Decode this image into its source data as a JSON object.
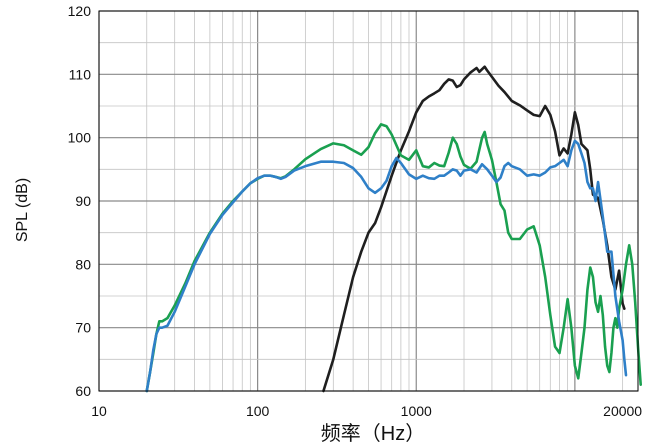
{
  "chart_data": {
    "type": "line",
    "title": "",
    "xlabel": "频率（Hz）",
    "ylabel": "SPL (dB)",
    "xscale": "log",
    "xlim": [
      10,
      25000
    ],
    "ylim": [
      60,
      120
    ],
    "x_tick_labels": [
      {
        "value": 10,
        "label": "10"
      },
      {
        "value": 100,
        "label": "100"
      },
      {
        "value": 1000,
        "label": "1000"
      },
      {
        "value": 20000,
        "label": "20000"
      }
    ],
    "y_ticks": [
      60,
      70,
      80,
      90,
      100,
      110,
      120
    ],
    "grid": true,
    "legend": "none",
    "series": [
      {
        "color": "#1f1f1f",
        "points": [
          [
            260,
            60
          ],
          [
            300,
            65
          ],
          [
            350,
            72
          ],
          [
            400,
            78
          ],
          [
            450,
            82
          ],
          [
            500,
            85
          ],
          [
            550,
            86.5
          ],
          [
            600,
            89
          ],
          [
            700,
            94
          ],
          [
            800,
            98
          ],
          [
            900,
            101
          ],
          [
            1000,
            104
          ],
          [
            1100,
            105.8
          ],
          [
            1200,
            106.5
          ],
          [
            1300,
            107
          ],
          [
            1400,
            107.5
          ],
          [
            1500,
            108.5
          ],
          [
            1600,
            109.2
          ],
          [
            1700,
            109
          ],
          [
            1800,
            108
          ],
          [
            1900,
            108.3
          ],
          [
            2000,
            109.2
          ],
          [
            2200,
            110.3
          ],
          [
            2400,
            111
          ],
          [
            2500,
            110.4
          ],
          [
            2700,
            111.2
          ],
          [
            2800,
            110.6
          ],
          [
            3000,
            109.6
          ],
          [
            3300,
            108.2
          ],
          [
            3600,
            107.2
          ],
          [
            4000,
            105.8
          ],
          [
            4500,
            105.1
          ],
          [
            5000,
            104.3
          ],
          [
            5500,
            103.6
          ],
          [
            6000,
            103.4
          ],
          [
            6500,
            105
          ],
          [
            7000,
            103.6
          ],
          [
            7500,
            101
          ],
          [
            8000,
            97.2
          ],
          [
            8500,
            98.3
          ],
          [
            9000,
            97.5
          ],
          [
            9500,
            100.5
          ],
          [
            10000,
            104
          ],
          [
            10500,
            102
          ],
          [
            11000,
            99
          ],
          [
            12000,
            98
          ],
          [
            12500,
            95
          ],
          [
            13000,
            91
          ],
          [
            14000,
            90.5
          ],
          [
            15000,
            87
          ],
          [
            16000,
            83
          ],
          [
            17000,
            78
          ],
          [
            18000,
            76
          ],
          [
            19000,
            79
          ],
          [
            20000,
            73.8
          ],
          [
            20500,
            73
          ]
        ]
      },
      {
        "color": "#1aa050",
        "points": [
          [
            20,
            60
          ],
          [
            21,
            63
          ],
          [
            22,
            66
          ],
          [
            23,
            69
          ],
          [
            24,
            71
          ],
          [
            25,
            71
          ],
          [
            27,
            71.5
          ],
          [
            30,
            73.5
          ],
          [
            35,
            77
          ],
          [
            40,
            80.5
          ],
          [
            50,
            85
          ],
          [
            60,
            88
          ],
          [
            70,
            90
          ],
          [
            80,
            91.5
          ],
          [
            90,
            92.8
          ],
          [
            100,
            93.5
          ],
          [
            110,
            94
          ],
          [
            120,
            94
          ],
          [
            130,
            93.8
          ],
          [
            140,
            93.6
          ],
          [
            150,
            93.9
          ],
          [
            170,
            95
          ],
          [
            200,
            96.6
          ],
          [
            250,
            98.2
          ],
          [
            300,
            99.1
          ],
          [
            350,
            98.8
          ],
          [
            400,
            98
          ],
          [
            450,
            97.3
          ],
          [
            500,
            98.5
          ],
          [
            550,
            100.7
          ],
          [
            600,
            102.1
          ],
          [
            650,
            101.8
          ],
          [
            700,
            100.5
          ],
          [
            800,
            97.2
          ],
          [
            900,
            96.5
          ],
          [
            1000,
            98
          ],
          [
            1100,
            95.5
          ],
          [
            1200,
            95.3
          ],
          [
            1300,
            96
          ],
          [
            1400,
            95.6
          ],
          [
            1500,
            95.5
          ],
          [
            1600,
            97.6
          ],
          [
            1700,
            100
          ],
          [
            1800,
            99
          ],
          [
            1900,
            97
          ],
          [
            2000,
            95.7
          ],
          [
            2200,
            95.1
          ],
          [
            2400,
            96.2
          ],
          [
            2600,
            100
          ],
          [
            2700,
            100.9
          ],
          [
            2800,
            99
          ],
          [
            3000,
            96.5
          ],
          [
            3200,
            93
          ],
          [
            3400,
            89.5
          ],
          [
            3600,
            88.5
          ],
          [
            3800,
            85
          ],
          [
            4000,
            84
          ],
          [
            4500,
            84
          ],
          [
            5000,
            85.5
          ],
          [
            5500,
            86
          ],
          [
            6000,
            83
          ],
          [
            6500,
            78
          ],
          [
            7000,
            72
          ],
          [
            7500,
            67
          ],
          [
            8000,
            66
          ],
          [
            8500,
            70
          ],
          [
            9000,
            74.5
          ],
          [
            9500,
            70
          ],
          [
            10000,
            64
          ],
          [
            10500,
            62
          ],
          [
            11000,
            66
          ],
          [
            11500,
            70
          ],
          [
            12000,
            76
          ],
          [
            12500,
            79.5
          ],
          [
            13000,
            78
          ],
          [
            13500,
            74
          ],
          [
            14000,
            72.5
          ],
          [
            14500,
            75
          ],
          [
            15000,
            72
          ],
          [
            15500,
            67
          ],
          [
            16000,
            64
          ],
          [
            16500,
            63
          ],
          [
            17000,
            66
          ],
          [
            17500,
            70
          ],
          [
            18000,
            71.5
          ],
          [
            18500,
            70
          ],
          [
            19000,
            73
          ],
          [
            20000,
            76
          ],
          [
            21000,
            80
          ],
          [
            22000,
            83
          ],
          [
            23000,
            80
          ],
          [
            24000,
            74
          ],
          [
            25000,
            67
          ],
          [
            26000,
            61
          ]
        ]
      },
      {
        "color": "#2f80c8",
        "points": [
          [
            20,
            60
          ],
          [
            21,
            63
          ],
          [
            22,
            66.5
          ],
          [
            23,
            69
          ],
          [
            24,
            70
          ],
          [
            25,
            70
          ],
          [
            27,
            70.3
          ],
          [
            30,
            72.5
          ],
          [
            35,
            76.5
          ],
          [
            40,
            80
          ],
          [
            50,
            84.8
          ],
          [
            60,
            87.8
          ],
          [
            70,
            89.8
          ],
          [
            80,
            91.5
          ],
          [
            90,
            92.8
          ],
          [
            100,
            93.6
          ],
          [
            110,
            94
          ],
          [
            120,
            94
          ],
          [
            130,
            93.8
          ],
          [
            140,
            93.5
          ],
          [
            150,
            93.8
          ],
          [
            170,
            94.8
          ],
          [
            200,
            95.5
          ],
          [
            250,
            96.2
          ],
          [
            300,
            96.2
          ],
          [
            350,
            96
          ],
          [
            400,
            95.2
          ],
          [
            450,
            93.8
          ],
          [
            500,
            92
          ],
          [
            550,
            91.3
          ],
          [
            600,
            92
          ],
          [
            650,
            93.2
          ],
          [
            700,
            95.5
          ],
          [
            750,
            96.8
          ],
          [
            800,
            96
          ],
          [
            900,
            94.2
          ],
          [
            1000,
            93.5
          ],
          [
            1100,
            94
          ],
          [
            1200,
            93.6
          ],
          [
            1300,
            93.5
          ],
          [
            1400,
            94
          ],
          [
            1500,
            94
          ],
          [
            1600,
            94.5
          ],
          [
            1700,
            95
          ],
          [
            1800,
            94.8
          ],
          [
            1900,
            94
          ],
          [
            2000,
            94.8
          ],
          [
            2200,
            95
          ],
          [
            2400,
            94.5
          ],
          [
            2600,
            95.8
          ],
          [
            2800,
            95
          ],
          [
            3000,
            94
          ],
          [
            3200,
            93
          ],
          [
            3400,
            93.7
          ],
          [
            3600,
            95.5
          ],
          [
            3800,
            96
          ],
          [
            4000,
            95.5
          ],
          [
            4500,
            95
          ],
          [
            5000,
            94
          ],
          [
            5500,
            94.2
          ],
          [
            6000,
            94
          ],
          [
            6500,
            94.5
          ],
          [
            7000,
            95.3
          ],
          [
            7500,
            95.5
          ],
          [
            8000,
            96
          ],
          [
            8500,
            96.5
          ],
          [
            9000,
            95.5
          ],
          [
            9500,
            98
          ],
          [
            10000,
            99.5
          ],
          [
            10500,
            99
          ],
          [
            11000,
            97.5
          ],
          [
            11500,
            96
          ],
          [
            12000,
            93
          ],
          [
            12500,
            92
          ],
          [
            13000,
            92
          ],
          [
            13500,
            90
          ],
          [
            14000,
            93
          ],
          [
            15000,
            87.5
          ],
          [
            16000,
            82
          ],
          [
            17000,
            82
          ],
          [
            18000,
            75
          ],
          [
            19000,
            71
          ],
          [
            20000,
            68
          ],
          [
            20500,
            65
          ],
          [
            21000,
            62.5
          ]
        ]
      }
    ]
  }
}
